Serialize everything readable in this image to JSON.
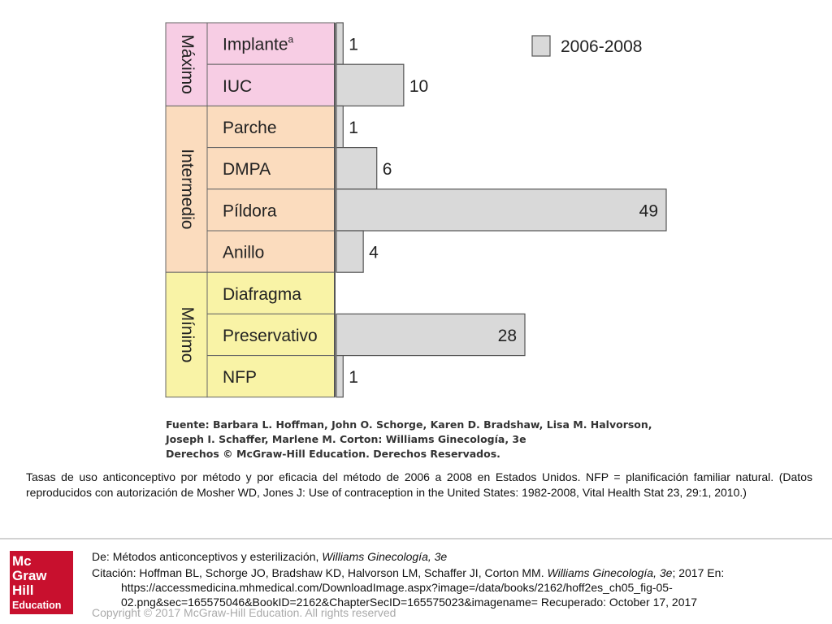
{
  "chart_data": {
    "type": "bar",
    "legend_label": "2006-2008",
    "groups": [
      {
        "name": "Máximo",
        "color": "#f7cde4",
        "items": [
          {
            "label": "Implante",
            "sup": "a",
            "value": 1
          },
          {
            "label": "IUC",
            "value": 10
          }
        ]
      },
      {
        "name": "Intermedio",
        "color": "#fbdcbe",
        "items": [
          {
            "label": "Parche",
            "value": 1
          },
          {
            "label": "DMPA",
            "value": 6
          },
          {
            "label": "Píldora",
            "value": 49
          },
          {
            "label": "Anillo",
            "value": 4
          }
        ]
      },
      {
        "name": "Mínimo",
        "color": "#f9f3a6",
        "items": [
          {
            "label": "Diafragma",
            "value": null
          },
          {
            "label": "Preservativo",
            "value": 28
          },
          {
            "label": "NFP",
            "value": 1
          }
        ]
      }
    ],
    "bar_color": "#d9d9d9",
    "xlim": [
      0,
      49
    ],
    "source_lines": [
      "Fuente: Barbara L. Hoffman, John O. Schorge, Karen D. Bradshaw, Lisa M. Halvorson,",
      "Joseph I. Schaffer, Marlene M. Corton: Williams Ginecología, 3e",
      "Derechos © McGraw-Hill Education. Derechos Reservados."
    ]
  },
  "caption": "Tasas de uso anticonceptivo por método y por eficacia del método de 2006 a 2008 en Estados Unidos. NFP = planificación familiar natural. (Datos reproducidos con autorización de Mosher WD, Jones J: Use of contraception in the United States: 1982-2008, Vital Health Stat 23, 29:1, 2010.)",
  "footer": {
    "logo_lines": [
      "Mc",
      "Graw",
      "Hill",
      "Education"
    ],
    "from_prefix": "De: ",
    "from_chapter": "Métodos anticonceptivos y esterilización, ",
    "from_book": "Williams Ginecología, 3e",
    "citation_prefix": "Citación: Hoffman BL, Schorge JO, Bradshaw KD, Halvorson LM, Schaffer JI, Corton MM. ",
    "citation_book": "Williams Ginecología, 3e",
    "citation_rest": "; 2017 En:",
    "citation_url": "https://accessmedicina.mhmedical.com/DownloadImage.aspx?image=/data/books/2162/hoff2es_ch05_fig-05-02.png&sec=165575046&BookID=2162&ChapterSecID=165575023&imagename= Recuperado: October 17, 2017",
    "copyright": "Copyright © 2017 McGraw-Hill Education. All rights reserved"
  }
}
